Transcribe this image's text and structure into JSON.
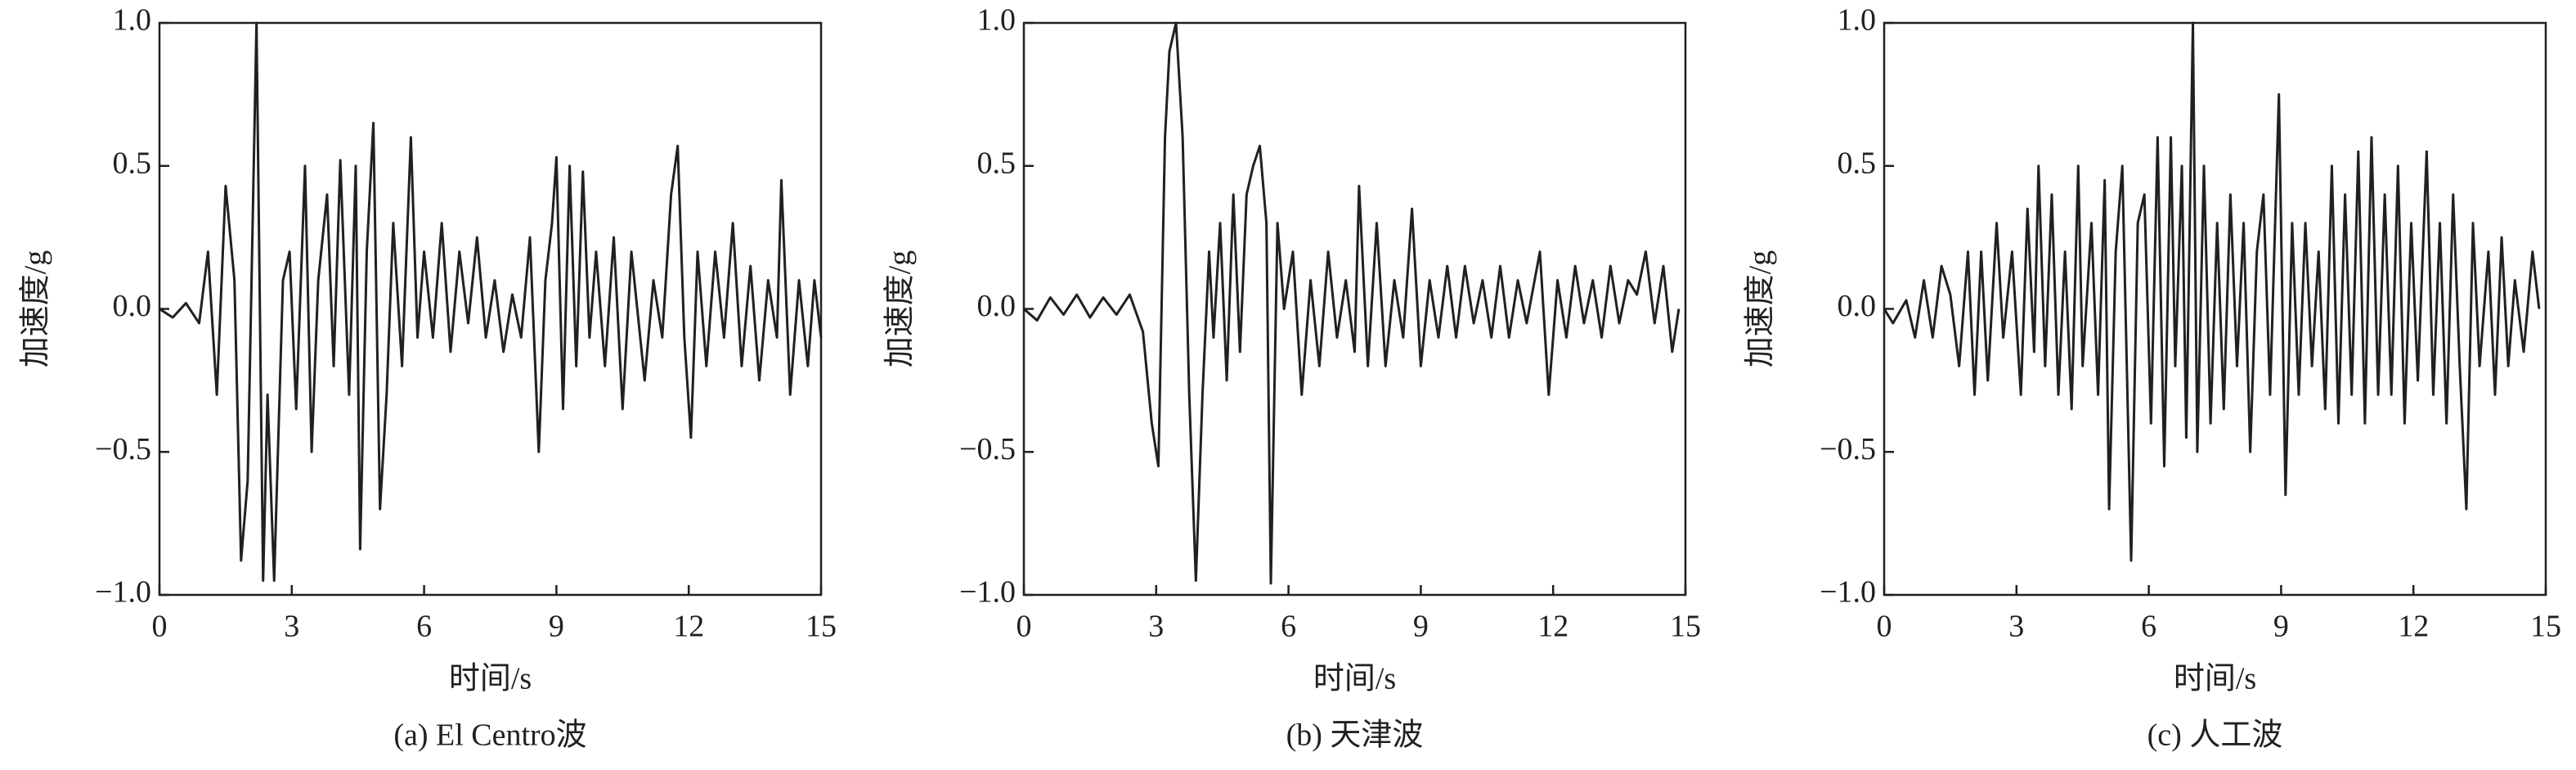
{
  "chart_data": [
    {
      "type": "line",
      "title": "(a) El Centro波",
      "xlabel": "时间/s",
      "ylabel": "加速度/g",
      "color": "#231f20",
      "xlim": [
        0,
        15
      ],
      "xticks": [
        0,
        3,
        6,
        9,
        12,
        15
      ],
      "ylim": [
        -1,
        1
      ],
      "yticks": [
        {
          "value": -1,
          "label": "−1.0"
        },
        {
          "value": -0.5,
          "label": "−0.5"
        },
        {
          "value": 0,
          "label": "0.0"
        },
        0.5,
        {
          "value": 1,
          "label": "1.0"
        }
      ],
      "x": [
        0,
        0.3,
        0.6,
        0.9,
        1.1,
        1.3,
        1.5,
        1.7,
        1.85,
        2.0,
        2.2,
        2.35,
        2.45,
        2.6,
        2.8,
        2.95,
        3.1,
        3.3,
        3.45,
        3.6,
        3.8,
        3.95,
        4.1,
        4.3,
        4.45,
        4.55,
        4.7,
        4.85,
        5.0,
        5.15,
        5.3,
        5.5,
        5.7,
        5.85,
        6.0,
        6.2,
        6.4,
        6.6,
        6.8,
        7.0,
        7.2,
        7.4,
        7.6,
        7.8,
        8.0,
        8.2,
        8.4,
        8.6,
        8.75,
        8.9,
        9.0,
        9.15,
        9.3,
        9.45,
        9.6,
        9.75,
        9.9,
        10.1,
        10.3,
        10.5,
        10.7,
        10.9,
        11.0,
        11.2,
        11.4,
        11.6,
        11.75,
        11.9,
        12.05,
        12.2,
        12.4,
        12.6,
        12.8,
        13.0,
        13.2,
        13.4,
        13.6,
        13.8,
        14.0,
        14.1,
        14.3,
        14.5,
        14.7,
        14.85,
        15
      ],
      "values": [
        0,
        -0.03,
        0.02,
        -0.05,
        0.2,
        -0.3,
        0.43,
        0.1,
        -0.88,
        -0.6,
        1.0,
        -0.95,
        -0.3,
        -0.95,
        0.1,
        0.2,
        -0.35,
        0.5,
        -0.5,
        0.1,
        0.4,
        -0.2,
        0.52,
        -0.3,
        0.5,
        -0.84,
        0.2,
        0.65,
        -0.7,
        -0.3,
        0.3,
        -0.2,
        0.6,
        -0.1,
        0.2,
        -0.1,
        0.3,
        -0.15,
        0.2,
        -0.05,
        0.25,
        -0.1,
        0.1,
        -0.15,
        0.05,
        -0.1,
        0.25,
        -0.5,
        0.1,
        0.3,
        0.53,
        -0.35,
        0.5,
        -0.2,
        0.48,
        -0.1,
        0.2,
        -0.2,
        0.25,
        -0.35,
        0.2,
        -0.1,
        -0.25,
        0.1,
        -0.1,
        0.4,
        0.57,
        -0.1,
        -0.45,
        0.2,
        -0.2,
        0.2,
        -0.1,
        0.3,
        -0.2,
        0.15,
        -0.25,
        0.1,
        -0.1,
        0.45,
        -0.3,
        0.1,
        -0.2,
        0.1,
        -0.1
      ]
    },
    {
      "type": "line",
      "title": "(b) 天津波",
      "xlabel": "时间/s",
      "ylabel": "加速度/g",
      "color": "#231f20",
      "xlim": [
        0,
        15
      ],
      "xticks": [
        0,
        3,
        6,
        9,
        12,
        15
      ],
      "ylim": [
        -1,
        1
      ],
      "yticks": [
        {
          "value": -1,
          "label": "−1.0"
        },
        {
          "value": -0.5,
          "label": "−0.5"
        },
        {
          "value": 0,
          "label": "0.0"
        },
        0.5,
        {
          "value": 1,
          "label": "1.0"
        }
      ],
      "x": [
        0,
        0.3,
        0.6,
        0.9,
        1.2,
        1.5,
        1.8,
        2.1,
        2.4,
        2.7,
        2.9,
        3.05,
        3.2,
        3.3,
        3.45,
        3.6,
        3.75,
        3.9,
        4.05,
        4.2,
        4.3,
        4.45,
        4.6,
        4.75,
        4.9,
        5.05,
        5.2,
        5.35,
        5.5,
        5.6,
        5.75,
        5.9,
        6.1,
        6.3,
        6.5,
        6.7,
        6.9,
        7.1,
        7.3,
        7.5,
        7.6,
        7.8,
        8.0,
        8.2,
        8.4,
        8.6,
        8.8,
        9.0,
        9.2,
        9.4,
        9.6,
        9.8,
        10.0,
        10.2,
        10.4,
        10.6,
        10.8,
        11.0,
        11.2,
        11.4,
        11.7,
        11.9,
        12.1,
        12.3,
        12.5,
        12.7,
        12.9,
        13.1,
        13.3,
        13.5,
        13.7,
        13.9,
        14.1,
        14.3,
        14.5,
        14.7,
        14.85
      ],
      "values": [
        0,
        -0.04,
        0.04,
        -0.02,
        0.05,
        -0.03,
        0.04,
        -0.02,
        0.05,
        -0.08,
        -0.4,
        -0.55,
        0.6,
        0.9,
        1.0,
        0.6,
        -0.3,
        -0.95,
        -0.3,
        0.2,
        -0.1,
        0.3,
        -0.25,
        0.4,
        -0.15,
        0.4,
        0.5,
        0.57,
        0.3,
        -0.96,
        0.3,
        0.0,
        0.2,
        -0.3,
        0.1,
        -0.2,
        0.2,
        -0.1,
        0.1,
        -0.15,
        0.43,
        -0.2,
        0.3,
        -0.2,
        0.1,
        -0.1,
        0.35,
        -0.2,
        0.1,
        -0.1,
        0.15,
        -0.1,
        0.15,
        -0.05,
        0.1,
        -0.1,
        0.15,
        -0.1,
        0.1,
        -0.05,
        0.2,
        -0.3,
        0.1,
        -0.1,
        0.15,
        -0.05,
        0.1,
        -0.1,
        0.15,
        -0.05,
        0.1,
        0.05,
        0.2,
        -0.05,
        0.15,
        -0.15,
        0.0
      ]
    },
    {
      "type": "line",
      "title": "(c) 人工波",
      "xlabel": "时间/s",
      "ylabel": "加速度/g",
      "color": "#231f20",
      "xlim": [
        0,
        15
      ],
      "xticks": [
        0,
        3,
        6,
        9,
        12,
        15
      ],
      "ylim": [
        -1,
        1
      ],
      "yticks": [
        {
          "value": -1,
          "label": "−1.0"
        },
        {
          "value": -0.5,
          "label": "−0.5"
        },
        {
          "value": 0,
          "label": "0.0"
        },
        0.5,
        {
          "value": 1,
          "label": "1.0"
        }
      ],
      "x": [
        0,
        0.2,
        0.5,
        0.7,
        0.9,
        1.1,
        1.3,
        1.5,
        1.7,
        1.9,
        2.05,
        2.2,
        2.35,
        2.55,
        2.7,
        2.9,
        3.1,
        3.25,
        3.4,
        3.5,
        3.65,
        3.8,
        3.95,
        4.1,
        4.25,
        4.4,
        4.5,
        4.7,
        4.85,
        5.0,
        5.1,
        5.25,
        5.4,
        5.6,
        5.75,
        5.9,
        6.05,
        6.2,
        6.35,
        6.5,
        6.6,
        6.75,
        6.85,
        7.0,
        7.1,
        7.25,
        7.4,
        7.55,
        7.7,
        7.85,
        8.0,
        8.15,
        8.3,
        8.45,
        8.6,
        8.75,
        8.95,
        9.1,
        9.25,
        9.4,
        9.55,
        9.7,
        9.85,
        10.0,
        10.15,
        10.3,
        10.45,
        10.6,
        10.75,
        10.9,
        11.05,
        11.2,
        11.35,
        11.5,
        11.65,
        11.8,
        11.95,
        12.1,
        12.3,
        12.45,
        12.6,
        12.75,
        12.9,
        13.05,
        13.2,
        13.35,
        13.5,
        13.7,
        13.85,
        14.0,
        14.15,
        14.3,
        14.5,
        14.7,
        14.85
      ],
      "values": [
        0,
        -0.05,
        0.03,
        -0.1,
        0.1,
        -0.1,
        0.15,
        0.05,
        -0.2,
        0.2,
        -0.3,
        0.2,
        -0.25,
        0.3,
        -0.1,
        0.2,
        -0.3,
        0.35,
        -0.15,
        0.5,
        -0.2,
        0.4,
        -0.3,
        0.2,
        -0.35,
        0.5,
        -0.2,
        0.3,
        -0.3,
        0.45,
        -0.7,
        0.2,
        0.5,
        -0.88,
        0.3,
        0.4,
        -0.4,
        0.6,
        -0.55,
        0.6,
        -0.2,
        0.5,
        -0.45,
        1.0,
        -0.5,
        0.5,
        -0.4,
        0.3,
        -0.35,
        0.4,
        -0.2,
        0.3,
        -0.5,
        0.2,
        0.4,
        -0.3,
        0.75,
        -0.65,
        0.3,
        -0.3,
        0.3,
        -0.2,
        0.2,
        -0.35,
        0.5,
        -0.4,
        0.4,
        -0.3,
        0.55,
        -0.4,
        0.6,
        -0.3,
        0.4,
        -0.3,
        0.5,
        -0.4,
        0.3,
        -0.25,
        0.55,
        -0.3,
        0.3,
        -0.4,
        0.4,
        -0.2,
        -0.7,
        0.3,
        -0.2,
        0.2,
        -0.3,
        0.25,
        -0.2,
        0.1,
        -0.15,
        0.2,
        0.0
      ]
    }
  ]
}
